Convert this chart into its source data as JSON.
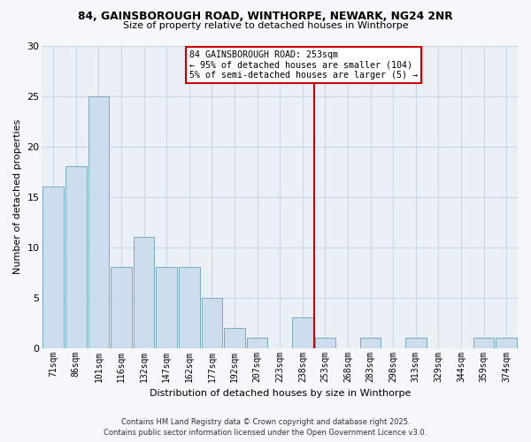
{
  "title_line1": "84, GAINSBOROUGH ROAD, WINTHORPE, NEWARK, NG24 2NR",
  "title_line2": "Size of property relative to detached houses in Winthorpe",
  "xlabel": "Distribution of detached houses by size in Winthorpe",
  "ylabel": "Number of detached properties",
  "bar_labels": [
    "71sqm",
    "86sqm",
    "101sqm",
    "116sqm",
    "132sqm",
    "147sqm",
    "162sqm",
    "177sqm",
    "192sqm",
    "207sqm",
    "223sqm",
    "238sqm",
    "253sqm",
    "268sqm",
    "283sqm",
    "298sqm",
    "313sqm",
    "329sqm",
    "344sqm",
    "359sqm",
    "374sqm"
  ],
  "bar_values": [
    16,
    18,
    25,
    8,
    11,
    8,
    8,
    5,
    2,
    1,
    0,
    3,
    1,
    0,
    1,
    0,
    1,
    0,
    0,
    1,
    1
  ],
  "bar_color": "#ccdded",
  "bar_edgecolor": "#7aaabb",
  "vline_color": "#cc0000",
  "annotation_text": "84 GAINSBOROUGH ROAD: 253sqm\n← 95% of detached houses are smaller (104)\n5% of semi-detached houses are larger (5) →",
  "ylim": [
    0,
    30
  ],
  "yticks": [
    0,
    5,
    10,
    15,
    20,
    25,
    30
  ],
  "grid_color": "#c8d8e8",
  "bg_color": "#eaf0f6",
  "fig_bg": "#f5f7fa",
  "footer_line1": "Contains HM Land Registry data © Crown copyright and database right 2025.",
  "footer_line2": "Contains public sector information licensed under the Open Government Licence v3.0."
}
